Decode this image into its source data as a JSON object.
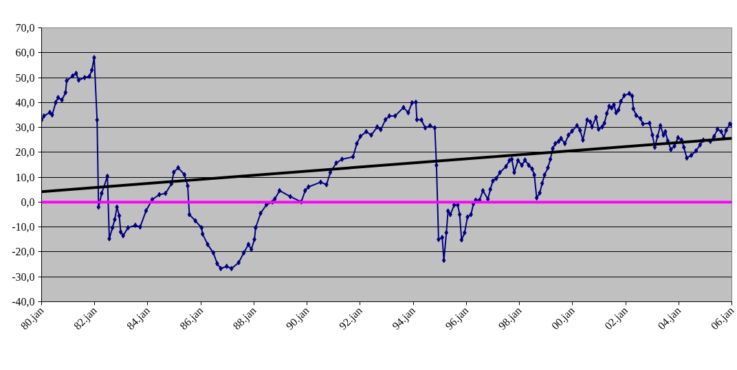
{
  "chart_data": {
    "type": "line",
    "xlim": [
      "1980-01",
      "2006-01"
    ],
    "ylim": [
      -40,
      70
    ],
    "xticks": [
      {
        "value": "1980-01",
        "label": "80.jan"
      },
      {
        "value": "1982-01",
        "label": "82.jan"
      },
      {
        "value": "1984-01",
        "label": "84.jan"
      },
      {
        "value": "1986-01",
        "label": "86.jan"
      },
      {
        "value": "1988-01",
        "label": "88.jan"
      },
      {
        "value": "1990-01",
        "label": "90.jan"
      },
      {
        "value": "1992-01",
        "label": "92.jan"
      },
      {
        "value": "1994-01",
        "label": "94.jan"
      },
      {
        "value": "1996-01",
        "label": "96.jan"
      },
      {
        "value": "1998-01",
        "label": "98.jan"
      },
      {
        "value": "2000-01",
        "label": "00.jan"
      },
      {
        "value": "2002-01",
        "label": "02.jan"
      },
      {
        "value": "2004-01",
        "label": "04.jan"
      },
      {
        "value": "2006-01",
        "label": "06.jan"
      }
    ],
    "yticks": [
      {
        "value": -40,
        "label": "-40,0"
      },
      {
        "value": -30,
        "label": "-30,0"
      },
      {
        "value": -20,
        "label": "-20,0"
      },
      {
        "value": -10,
        "label": "-10,0"
      },
      {
        "value": 0,
        "label": "0,0"
      },
      {
        "value": 10,
        "label": "10,0"
      },
      {
        "value": 20,
        "label": "20,0"
      },
      {
        "value": 30,
        "label": "30,0"
      },
      {
        "value": 40,
        "label": "40,0"
      },
      {
        "value": 50,
        "label": "50,0"
      },
      {
        "value": 60,
        "label": "60,0"
      },
      {
        "value": 70,
        "label": "70,0"
      }
    ],
    "grid": "y",
    "marker": "diamond",
    "line_style": "solid",
    "series": [
      {
        "color": "#000080",
        "x": [
          "1980-01-01",
          "1980-02-03",
          "1980-04-24",
          "1980-05-26",
          "1980-07-14",
          "1980-08-16",
          "1980-10-07",
          "1980-11-26",
          "1980-12-12",
          "1981-03-05",
          "1981-04-21",
          "1981-05-26",
          "1981-08-16",
          "1981-10-21",
          "1981-11-23",
          "1981-12-25",
          "1982-02-03",
          "1982-02-23",
          "1982-04-07",
          "1982-06-25",
          "1982-07-21",
          "1982-09-02",
          "1982-10-04",
          "1982-11-03",
          "1982-12-05",
          "1982-12-25",
          "1983-01-27",
          "1983-04-04",
          "1983-07-14",
          "1983-09-18",
          "1983-12-08",
          "1984-03-02",
          "1984-06-08",
          "1984-09-02",
          "1984-11-23",
          "1984-12-25",
          "1985-02-23",
          "1985-05-20",
          "1985-07-04",
          "1985-07-27",
          "1985-10-17",
          "1986-01-11",
          "1986-01-24",
          "1986-04-04",
          "1986-06-22",
          "1986-08-13",
          "1986-10-01",
          "1986-12-22",
          "1987-02-26",
          "1987-06-05",
          "1987-08-13",
          "1987-10-17",
          "1987-11-26",
          "1988-01-07",
          "1988-01-24",
          "1988-04-01",
          "1988-06-22",
          "1988-09-12",
          "1988-10-14",
          "1988-12-18",
          "1989-05-16",
          "1989-10-14",
          "1989-12-05",
          "1990-01-21",
          "1990-07-07",
          "1990-09-25",
          "1990-11-16",
          "1991-02-06",
          "1991-04-27",
          "1991-09-25",
          "1991-11-16",
          "1992-01-04",
          "1992-03-25",
          "1992-06-02",
          "1992-08-23",
          "1992-10-11",
          "1992-12-15",
          "1993-02-06",
          "1993-04-27",
          "1993-08-20",
          "1993-10-24",
          "1993-12-15",
          "1994-02-06",
          "1994-02-20",
          "1994-04-24",
          "1994-06-15",
          "1994-08-20",
          "1994-10-24",
          "1994-11-16",
          "1994-12-15",
          "1995-02-03",
          "1995-02-26",
          "1995-04-01",
          "1995-04-24",
          "1995-05-26",
          "1995-07-17",
          "1995-09-05",
          "1995-10-01",
          "1995-10-27",
          "1995-12-08",
          "1996-01-17",
          "1996-03-05",
          "1996-04-07",
          "1996-05-09",
          "1996-07-01",
          "1996-08-16",
          "1996-10-24",
          "1996-11-26",
          "1997-01-01",
          "1997-02-16",
          "1997-04-07",
          "1997-07-01",
          "1997-08-16",
          "1997-09-18",
          "1997-10-21",
          "1997-12-12",
          "1998-02-03",
          "1998-03-18",
          "1998-05-09",
          "1998-06-25",
          "1998-07-24",
          "1998-08-26",
          "1998-10-07",
          "1998-11-09",
          "1998-12-12",
          "1999-01-27",
          "1999-03-02",
          "1999-04-04",
          "1999-05-09",
          "1999-06-25",
          "1999-07-27",
          "1999-09-18",
          "1999-11-06",
          "1999-12-25",
          "2000-03-02",
          "2000-04-14",
          "2000-05-23",
          "2000-07-21",
          "2000-09-02",
          "2000-09-25",
          "2000-11-20",
          "2000-12-25",
          "2001-02-13",
          "2001-03-15",
          "2001-04-17",
          "2001-05-20",
          "2001-06-22",
          "2001-07-24",
          "2001-08-23",
          "2001-09-25",
          "2001-10-27",
          "2001-12-12",
          "2002-02-20",
          "2002-04-01",
          "2002-04-17",
          "2002-05-26",
          "2002-07-24",
          "2002-08-26",
          "2002-11-26",
          "2003-01-04",
          "2003-02-06",
          "2003-03-15",
          "2003-04-24",
          "2003-06-05",
          "2003-07-01",
          "2003-08-03",
          "2003-09-15",
          "2003-11-03",
          "2003-12-22",
          "2004-02-09",
          "2004-03-12",
          "2004-04-21",
          "2004-06-22",
          "2004-08-26",
          "2004-10-21",
          "2004-12-05",
          "2005-03-12",
          "2005-05-03",
          "2005-06-18",
          "2005-08-09",
          "2005-09-12",
          "2005-10-14",
          "2005-12-05",
          "2006-01-01"
        ],
        "values": [
          33,
          34.6,
          36,
          35,
          40,
          42,
          41,
          44,
          48.7,
          50.7,
          51.7,
          49,
          50,
          50.5,
          53,
          58,
          33,
          -2,
          3.5,
          10.4,
          -14.7,
          -10.3,
          -7,
          -2,
          -5.5,
          -12,
          -13.5,
          -10.3,
          -9.3,
          -10,
          -3.5,
          1,
          3,
          3.5,
          7.4,
          12,
          13.8,
          11,
          6.5,
          -5,
          -7.5,
          -10.3,
          -12.8,
          -17,
          -20.4,
          -24.7,
          -26.7,
          -25.8,
          -26.7,
          -24.3,
          -20.4,
          -17,
          -19,
          -15,
          -10.3,
          -4.5,
          -1,
          0,
          1.2,
          4.6,
          2.2,
          0.1,
          4.6,
          6.1,
          8,
          7,
          11.9,
          15.7,
          17.2,
          18.2,
          23.5,
          26.4,
          28.3,
          26.9,
          30.2,
          29.1,
          33.1,
          34.6,
          34.6,
          38,
          35.9,
          39.9,
          40.1,
          33.1,
          33,
          29.8,
          30.7,
          29.8,
          14.8,
          -15,
          -14.2,
          -23.4,
          -12.3,
          -3.6,
          -5,
          -1.2,
          -1.2,
          -5,
          -15.2,
          -12.3,
          -6,
          -5,
          -0.7,
          0.8,
          0.8,
          4.6,
          1.2,
          5.1,
          8.5,
          9.5,
          11.9,
          14.3,
          16.7,
          17.2,
          11.9,
          16.7,
          14.8,
          16.9,
          14.8,
          13.3,
          10.9,
          1.7,
          3.7,
          7.5,
          10.9,
          13.8,
          17.2,
          21.5,
          23.5,
          24.4,
          25.6,
          23.5,
          26.9,
          28.5,
          30.7,
          28.8,
          24.9,
          33,
          32.2,
          30.2,
          34.1,
          29.3,
          30.2,
          31.7,
          35.6,
          38.5,
          37.8,
          39.1,
          35.9,
          37,
          40.4,
          42.8,
          43.6,
          42.6,
          37.5,
          34.8,
          33.6,
          31.4,
          31.7,
          26.9,
          22,
          26.4,
          30.7,
          26.9,
          28.3,
          24.6,
          21.1,
          22.5,
          25.9,
          24.9,
          22,
          17.7,
          18.8,
          20.6,
          23,
          24.9,
          24.4,
          26.4,
          29.3,
          28.3,
          25.9,
          28.8,
          31.4,
          31
        ]
      },
      {
        "color": "#000000",
        "marker": "none",
        "x": [
          "1980-01-01",
          "2006-01-01"
        ],
        "values": [
          4.2,
          25.6
        ]
      }
    ],
    "ref_lines": [
      {
        "axis": "y",
        "value": 0,
        "color": "#ff00ff"
      }
    ]
  }
}
